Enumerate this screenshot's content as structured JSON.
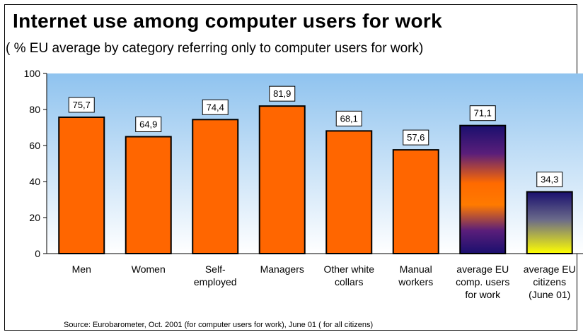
{
  "title": "Internet use among computer users for work",
  "subtitle": "( % EU average by category referring only to computer users for work)",
  "source": "Source: Eurobarometer, Oct. 2001 (for computer users for work), June 01 ( for all citizens)",
  "colors": {
    "bar": "#ff6600",
    "plot_top": "#8fc3ef",
    "plot_bottom": "#ffffff",
    "gradient_dark": "#1a0f6e",
    "gradient_yellow": "#ffff00"
  },
  "chart_data": {
    "type": "bar",
    "categories": [
      [
        "Men"
      ],
      [
        "Women"
      ],
      [
        "Self-",
        "employed"
      ],
      [
        "Managers"
      ],
      [
        "Other white",
        "collars"
      ],
      [
        "Manual",
        "workers"
      ],
      [
        "average EU",
        "comp. users",
        "for work"
      ],
      [
        "average EU",
        "citizens",
        "(June 01)"
      ]
    ],
    "values": [
      75.7,
      64.9,
      74.4,
      81.9,
      68.1,
      57.6,
      71.1,
      34.3
    ],
    "value_labels": [
      "75,7",
      "64,9",
      "74,4",
      "81,9",
      "68,1",
      "57,6",
      "71,1",
      "34,3"
    ],
    "bar_fills": [
      "solid",
      "solid",
      "solid",
      "solid",
      "solid",
      "solid",
      "sunset",
      "nightyellow"
    ],
    "yticks": [
      0,
      20,
      40,
      60,
      80,
      100
    ],
    "ylim": [
      0,
      100
    ],
    "grid": false,
    "legend": "none"
  }
}
